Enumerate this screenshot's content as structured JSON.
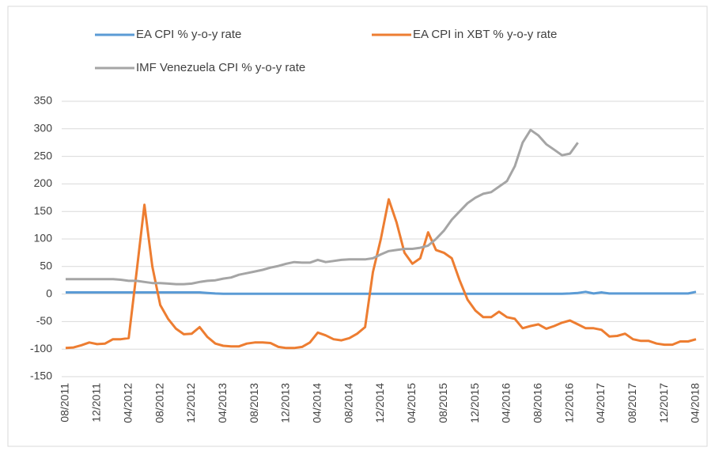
{
  "chart_data": {
    "type": "line",
    "categories": [
      "08/2011",
      null,
      null,
      null,
      "12/2011",
      null,
      null,
      null,
      "04/2012",
      null,
      null,
      null,
      "08/2012",
      null,
      null,
      null,
      "12/2012",
      null,
      null,
      null,
      "04/2013",
      null,
      null,
      null,
      "08/2013",
      null,
      null,
      null,
      "12/2013",
      null,
      null,
      null,
      "04/2014",
      null,
      null,
      null,
      "08/2014",
      null,
      null,
      null,
      "12/2014",
      null,
      null,
      null,
      "04/2015",
      null,
      null,
      null,
      "08/2015",
      null,
      null,
      null,
      "12/2015",
      null,
      null,
      null,
      "04/2016",
      null,
      null,
      null,
      "08/2016",
      null,
      null,
      null,
      "12/2016",
      null,
      null,
      null,
      "04/2017",
      null,
      null,
      null,
      "08/2017",
      null,
      null,
      null,
      "12/2017",
      null,
      null,
      null,
      "04/2018"
    ],
    "series": [
      {
        "name": "EA CPI % y-o-y rate",
        "color": "#5b9bd5",
        "values": [
          3,
          3,
          3,
          3,
          3,
          3,
          3,
          3,
          3,
          3,
          3,
          3,
          3,
          3,
          3,
          3,
          3,
          3,
          2,
          1,
          0.5,
          0.5,
          0.5,
          0.5,
          0.5,
          0.5,
          0.5,
          0.5,
          0.5,
          0.5,
          0.5,
          0.5,
          0.5,
          0.5,
          0.5,
          0.5,
          0.5,
          0.5,
          0.5,
          0.5,
          0.5,
          0.5,
          0.5,
          0.5,
          0.5,
          0.5,
          0.5,
          0.5,
          0.5,
          0.5,
          0.5,
          0.5,
          0.5,
          0.5,
          0.5,
          0.5,
          0.5,
          0.5,
          0.5,
          0.5,
          0.5,
          0.5,
          0.5,
          0.5,
          1,
          2,
          4,
          1,
          3,
          1,
          1,
          1,
          1,
          1,
          1,
          1,
          1,
          1,
          1,
          1,
          4
        ]
      },
      {
        "name": "EA CPI in XBT % y-o-y rate",
        "color": "#ed7d31",
        "values": [
          -98,
          -97,
          -93,
          -88,
          -91,
          -90,
          -82,
          -82,
          -80,
          40,
          162,
          50,
          -20,
          -45,
          -63,
          -73,
          -72,
          -60,
          -78,
          -90,
          -94,
          -95,
          -95,
          -90,
          -88,
          -88,
          -89,
          -96,
          -98,
          -98,
          -96,
          -88,
          -70,
          -75,
          -82,
          -84,
          -80,
          -72,
          -60,
          40,
          100,
          172,
          130,
          75,
          55,
          65,
          112,
          80,
          75,
          65,
          25,
          -10,
          -30,
          -42,
          -42,
          -32,
          -42,
          -45,
          -62,
          -58,
          -55,
          -63,
          -58,
          -52,
          -48,
          -55,
          -62,
          -62,
          -65,
          -77,
          -76,
          -72,
          -82,
          -85,
          -85,
          -90,
          -92,
          -92,
          -86,
          -86,
          -82
        ]
      },
      {
        "name": "IMF Venezuela CPI % y-o-y rate",
        "color": "#a5a5a5",
        "values": [
          27,
          27,
          27,
          27,
          27,
          27,
          27,
          26,
          24,
          24,
          22,
          20,
          20,
          19,
          18,
          18,
          19,
          22,
          24,
          25,
          28,
          30,
          35,
          38,
          41,
          44,
          48,
          51,
          55,
          58,
          57,
          57,
          62,
          58,
          60,
          62,
          63,
          63,
          63,
          65,
          72,
          78,
          80,
          82,
          82,
          84,
          88,
          100,
          115,
          135,
          150,
          165,
          175,
          182,
          185,
          195,
          205,
          232,
          275,
          298,
          288,
          272,
          262,
          252,
          255,
          275,
          null,
          null,
          null,
          null,
          null,
          null,
          null,
          null,
          null,
          null,
          null,
          null,
          null,
          null,
          null
        ]
      }
    ],
    "ylim": [
      -150,
      350
    ],
    "yticks": [
      -150,
      -100,
      -50,
      0,
      50,
      100,
      150,
      200,
      250,
      300,
      350
    ],
    "grid": true,
    "legend": "top"
  }
}
